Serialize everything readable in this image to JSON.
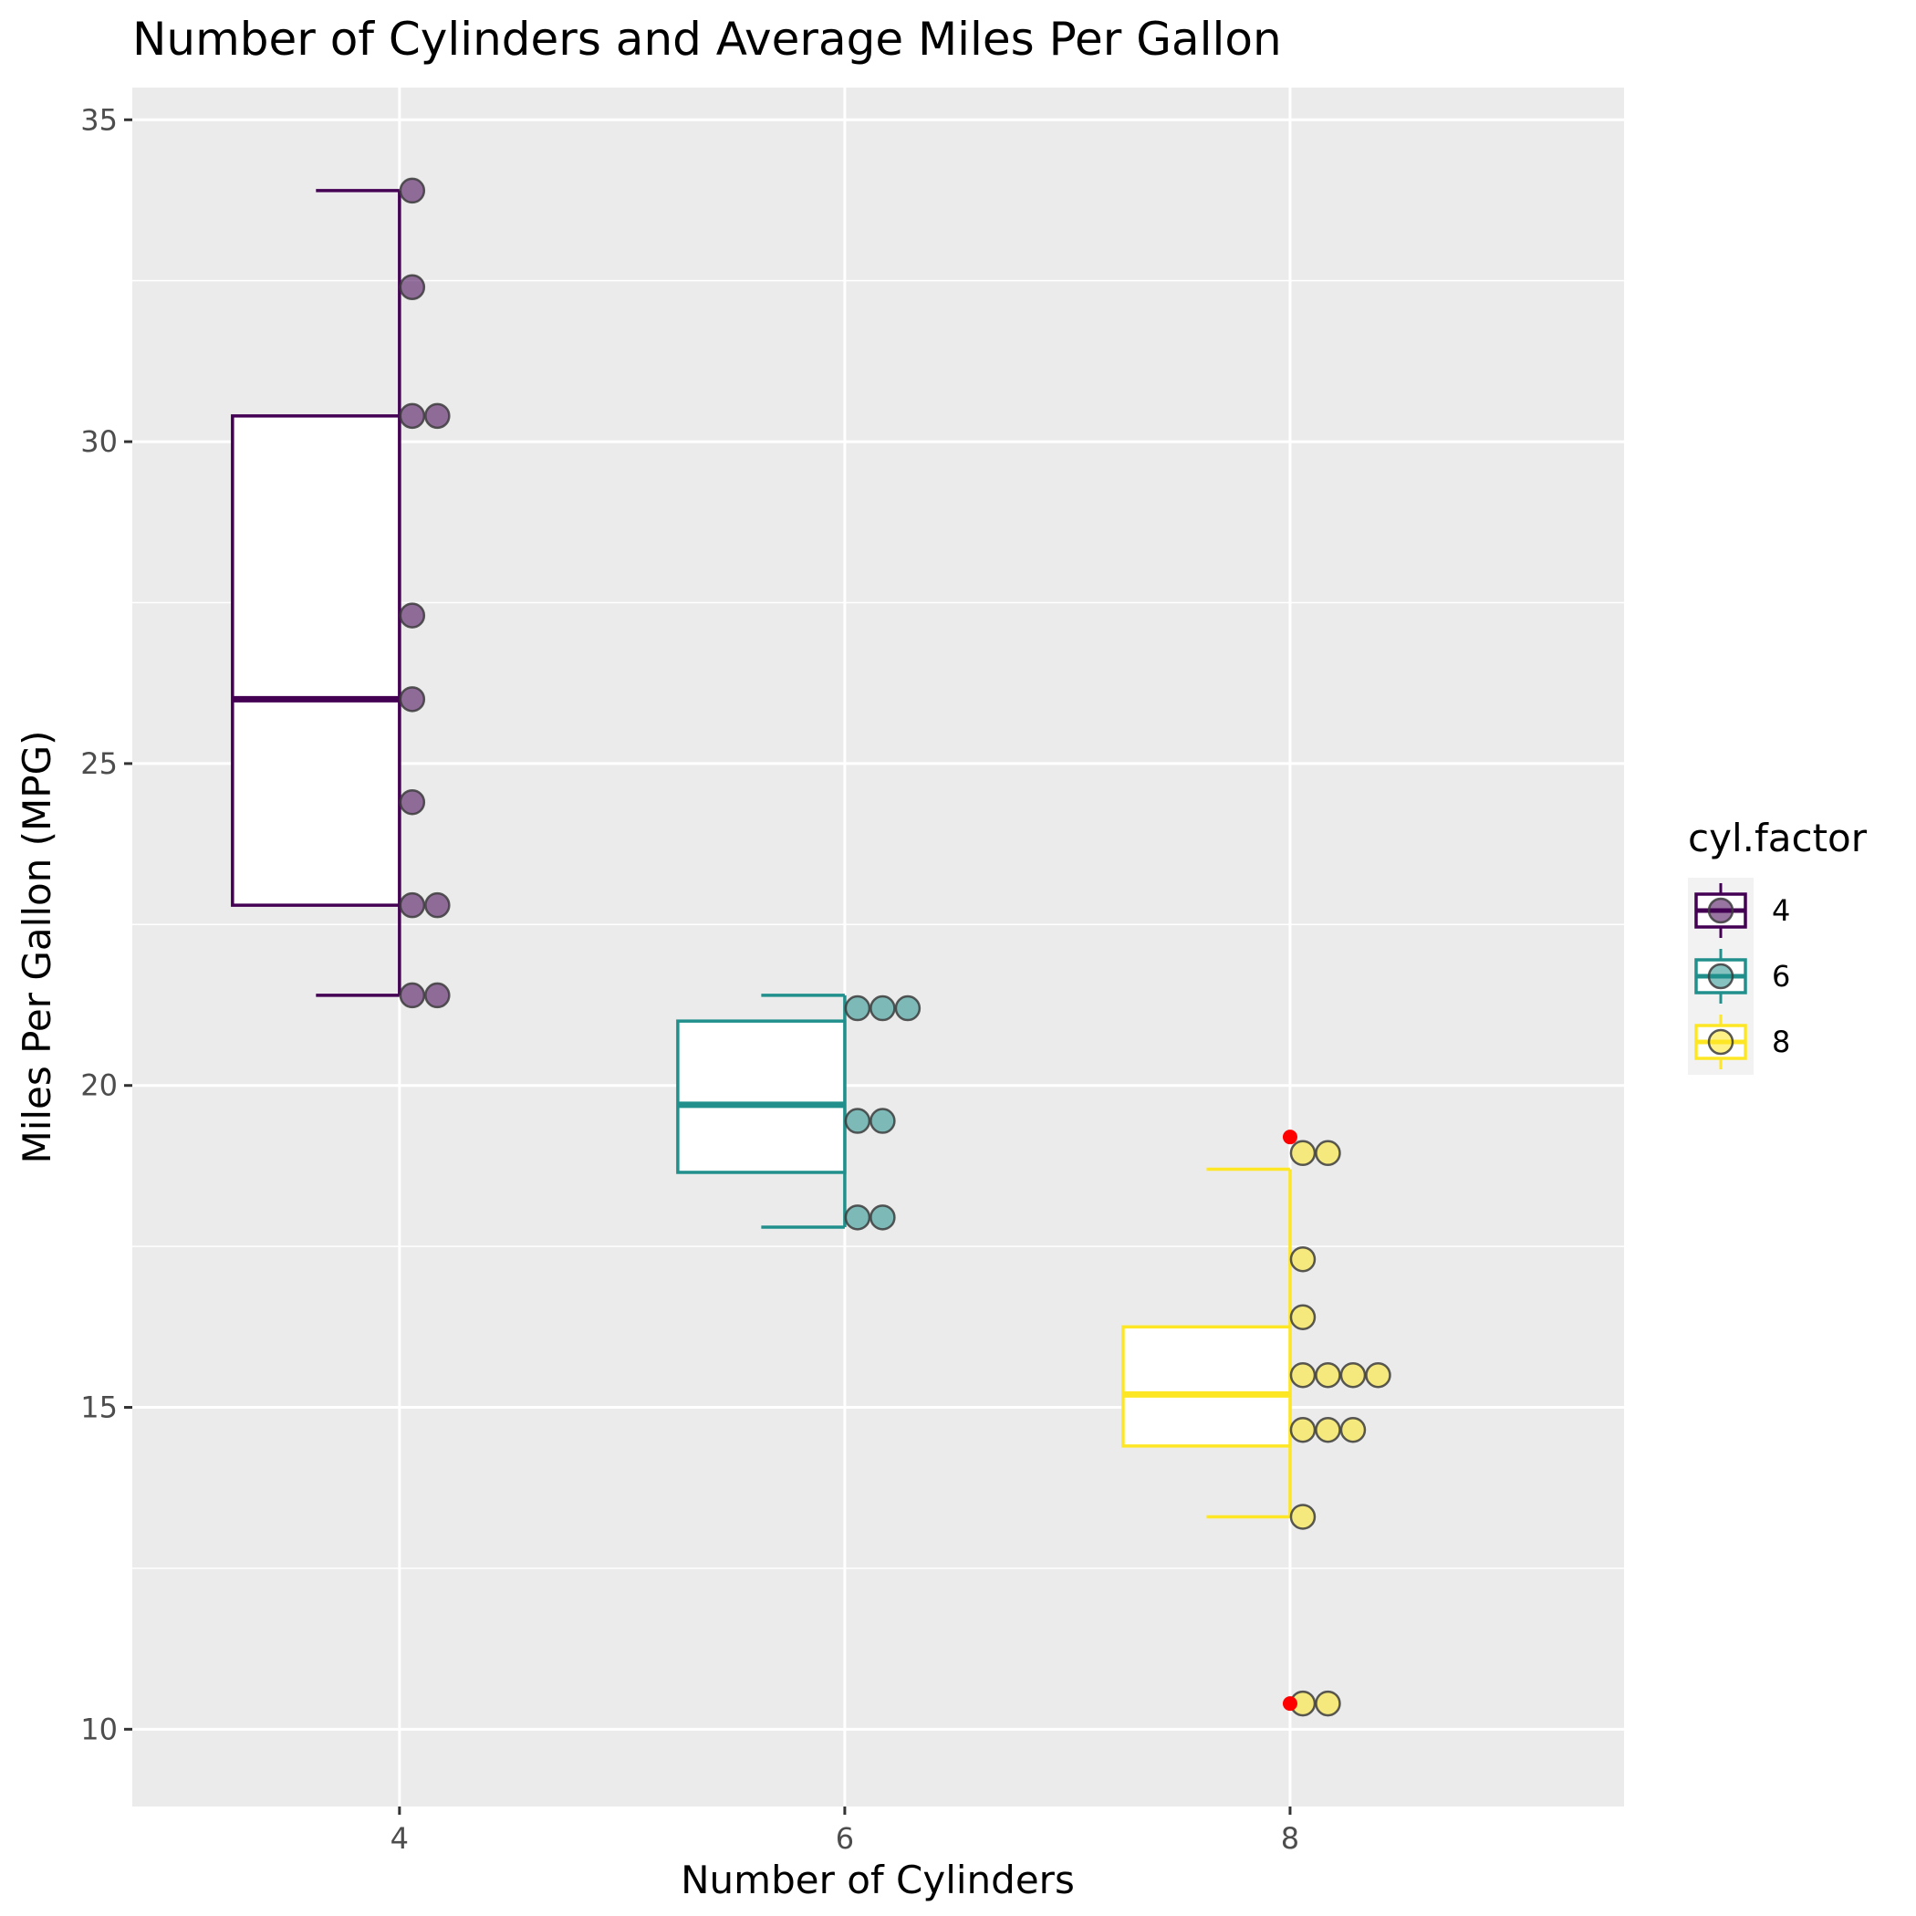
{
  "chart_data": {
    "type": "box",
    "title": "Number of Cylinders and Average Miles Per Gallon",
    "xlabel": "Number of Cylinders",
    "ylabel": "Miles Per Gallon (MPG)",
    "xlim": [
      2.8,
      9.5
    ],
    "ylim": [
      8.8,
      35.5
    ],
    "x_ticks": [
      4,
      6,
      8
    ],
    "y_ticks": [
      10,
      15,
      20,
      25,
      30,
      35
    ],
    "grid": true,
    "legend": {
      "title": "cyl.factor",
      "position": "right"
    },
    "groups": [
      {
        "name": "4",
        "x": 4,
        "color": "#440154",
        "box": {
          "lower_whisker": 21.4,
          "q1": 22.8,
          "median": 26.0,
          "q3": 30.4,
          "upper_whisker": 33.9
        },
        "points": [
          {
            "y": 33.9,
            "count": 1
          },
          {
            "y": 32.4,
            "count": 1
          },
          {
            "y": 30.4,
            "count": 2
          },
          {
            "y": 27.3,
            "count": 1
          },
          {
            "y": 26.0,
            "count": 1
          },
          {
            "y": 24.4,
            "count": 1
          },
          {
            "y": 22.8,
            "count": 2
          },
          {
            "y": 21.4,
            "count": 2
          }
        ],
        "outliers": []
      },
      {
        "name": "6",
        "x": 6,
        "color": "#21908C",
        "box": {
          "lower_whisker": 17.8,
          "q1": 18.65,
          "median": 19.7,
          "q3": 21.0,
          "upper_whisker": 21.4
        },
        "points": [
          {
            "y": 21.2,
            "count": 3
          },
          {
            "y": 19.45,
            "count": 2
          },
          {
            "y": 17.95,
            "count": 2
          }
        ],
        "outliers": []
      },
      {
        "name": "8",
        "x": 8,
        "color": "#FDE725",
        "box": {
          "lower_whisker": 13.3,
          "q1": 14.4,
          "median": 15.2,
          "q3": 16.25,
          "upper_whisker": 18.7
        },
        "points": [
          {
            "y": 18.95,
            "count": 2
          },
          {
            "y": 17.3,
            "count": 1
          },
          {
            "y": 16.4,
            "count": 1
          },
          {
            "y": 15.5,
            "count": 4
          },
          {
            "y": 14.65,
            "count": 3
          },
          {
            "y": 13.3,
            "count": 1
          },
          {
            "y": 10.4,
            "count": 2
          }
        ],
        "outliers": [
          19.2,
          10.4
        ]
      }
    ],
    "colors": {
      "panel": "#EBEBEB",
      "grid": "#FFFFFF",
      "outlier": "#FF0000",
      "legend_bg": "#F2F2F2"
    }
  }
}
